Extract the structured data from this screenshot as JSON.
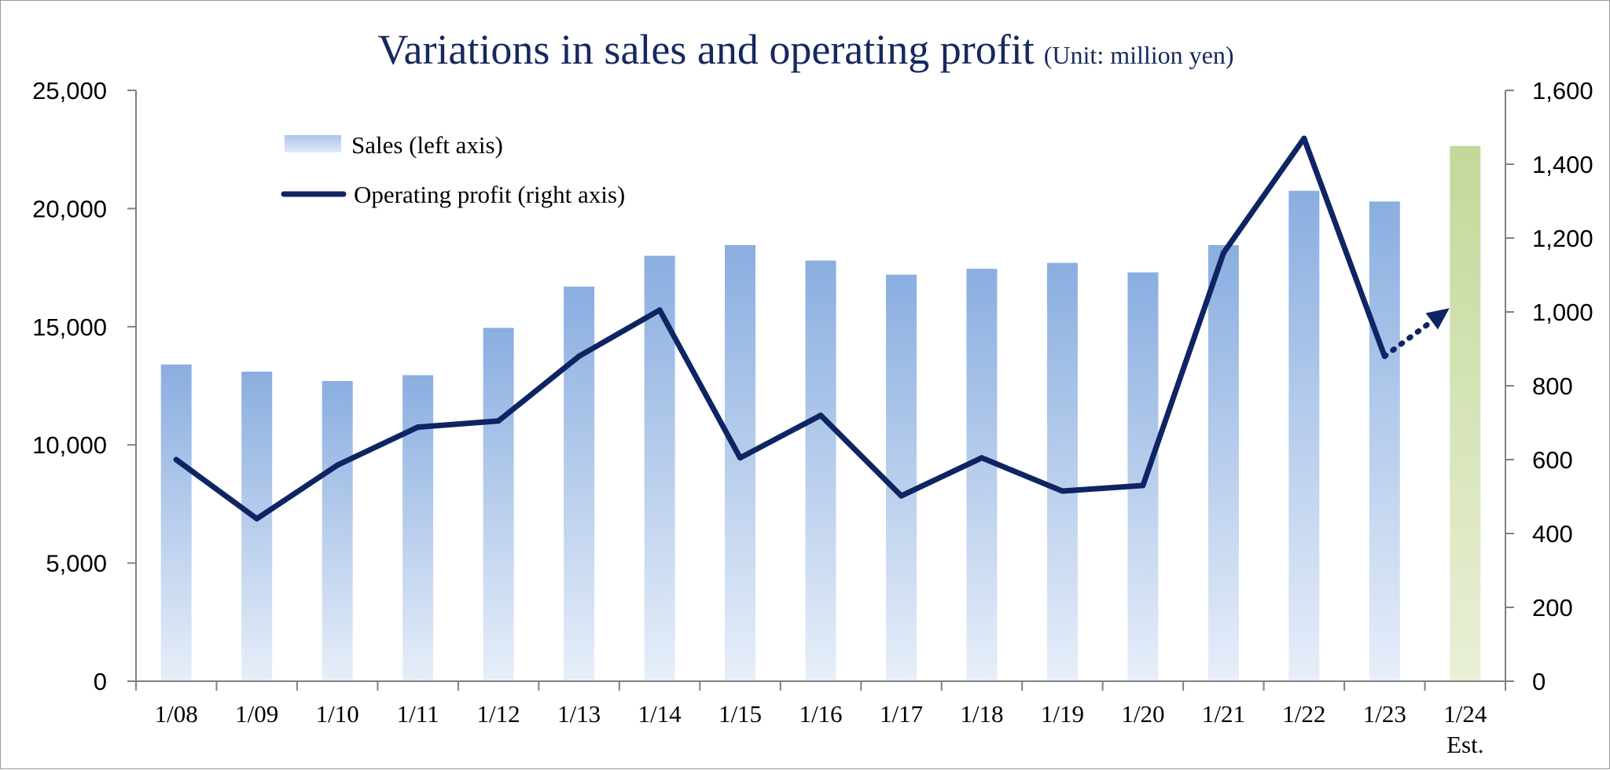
{
  "chart_data": {
    "type": "bar",
    "title": "Variations in sales and operating profit",
    "subtitle": "(Unit: million yen)",
    "categories": [
      "1/08",
      "1/09",
      "1/10",
      "1/11",
      "1/12",
      "1/13",
      "1/14",
      "1/15",
      "1/16",
      "1/17",
      "1/18",
      "1/19",
      "1/20",
      "1/21",
      "1/22",
      "1/23",
      "1/24"
    ],
    "category_sublabels": [
      "",
      "",
      "",
      "",
      "",
      "",
      "",
      "",
      "",
      "",
      "",
      "",
      "",
      "",
      "",
      "",
      "Est."
    ],
    "series": [
      {
        "name": "Sales (left axis)",
        "type": "bar",
        "axis": "left",
        "values": [
          13400,
          13100,
          12700,
          12950,
          14950,
          16700,
          18000,
          18450,
          17800,
          17200,
          17450,
          17700,
          17300,
          18450,
          20750,
          20300,
          22650
        ],
        "estimate_last": true
      },
      {
        "name": "Operating profit (right axis)",
        "type": "line",
        "axis": "right",
        "values": [
          600,
          440,
          585,
          688,
          705,
          880,
          1005,
          605,
          720,
          502,
          605,
          515,
          530,
          1160,
          1470,
          880,
          1010
        ],
        "estimate_last": true
      }
    ],
    "y_left": {
      "ylim": [
        0,
        25000
      ],
      "ticks": [
        "0",
        "5,000",
        "10,000",
        "15,000",
        "20,000",
        "25,000"
      ]
    },
    "y_right": {
      "ylim": [
        0,
        1600
      ],
      "ticks": [
        "0",
        "200",
        "400",
        "600",
        "800",
        "1,000",
        "1,200",
        "1,400",
        "1,600"
      ]
    },
    "grid": false,
    "legend_position": "top-left",
    "colors": {
      "title": "#16285e",
      "bar_top": "#8aaee0",
      "bar_bottom": "#e7eef9",
      "estimate_bar_top": "#c3d899",
      "estimate_bar_bottom": "#e9f0d6",
      "line": "#0e2463",
      "axis": "#808080"
    }
  }
}
